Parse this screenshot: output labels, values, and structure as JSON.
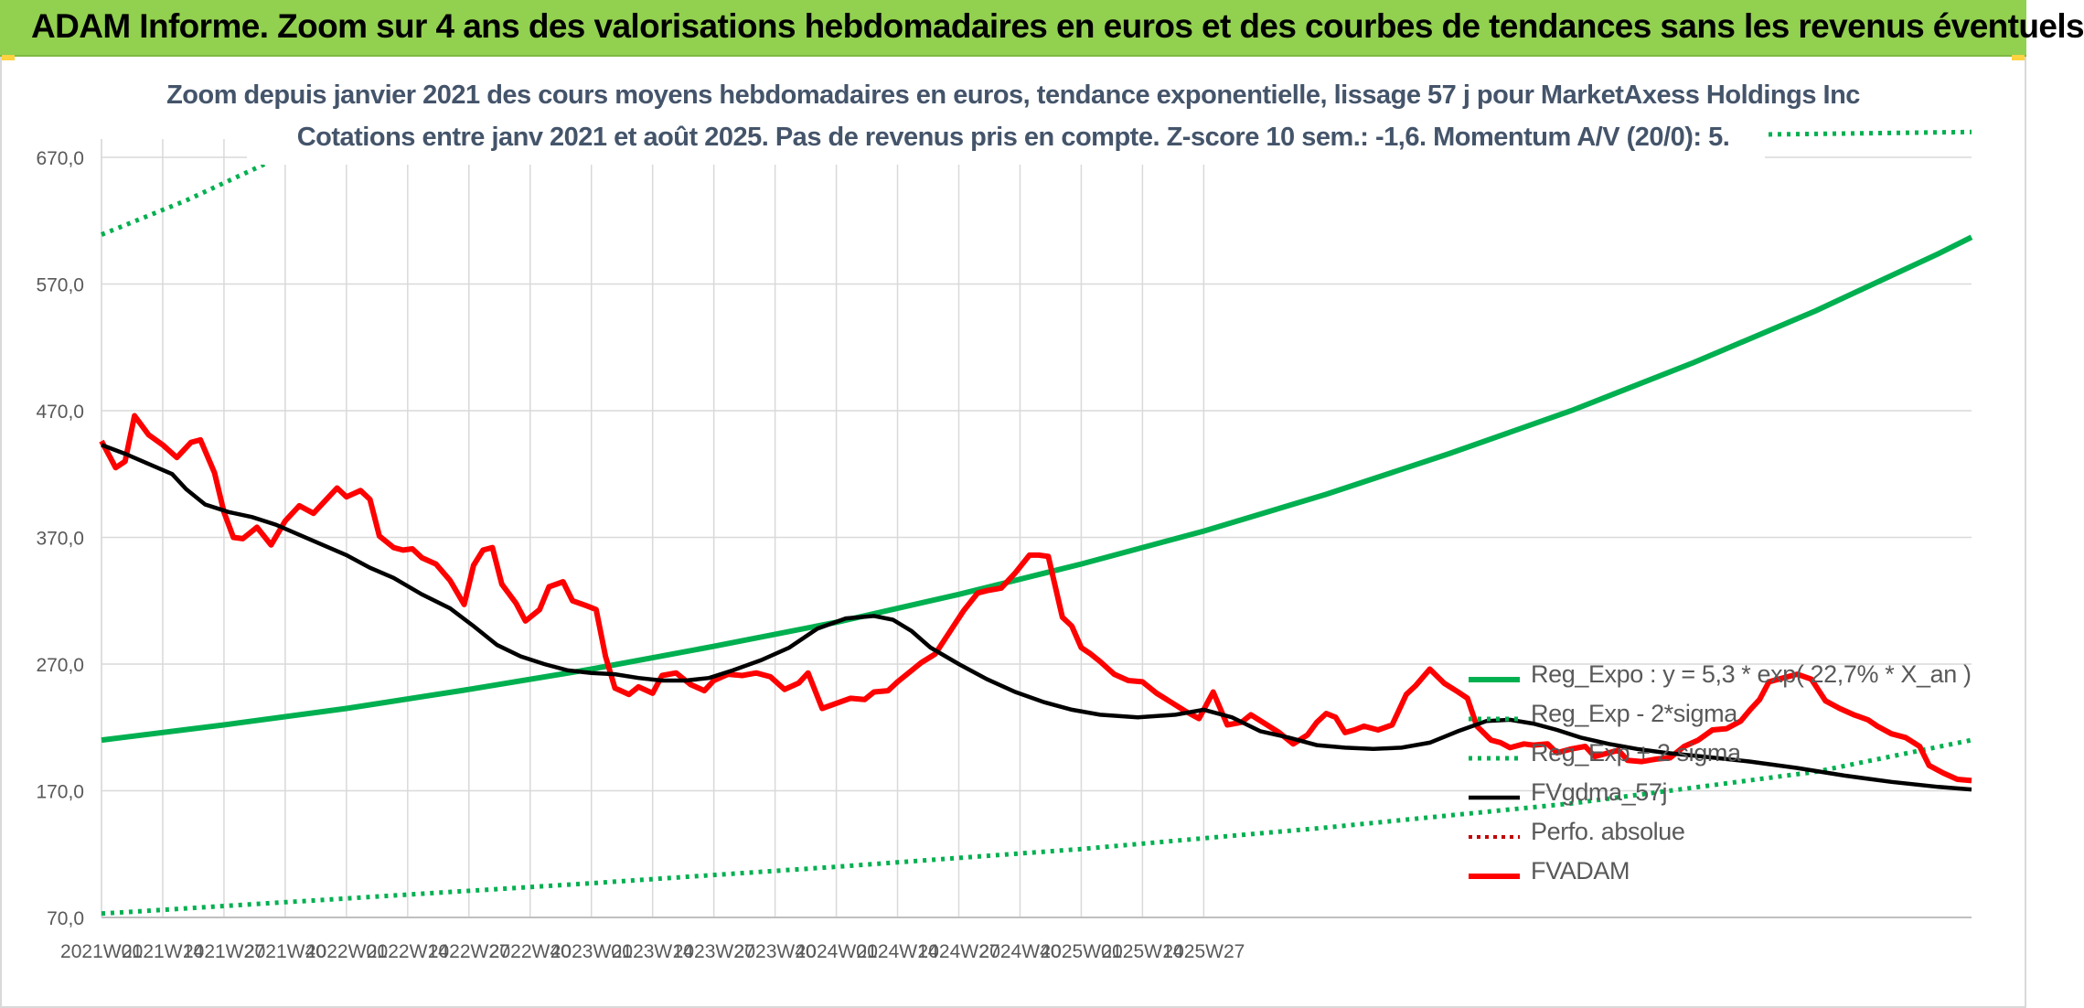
{
  "header": {
    "title": "ADAM Informe. Zoom sur 4 ans des valorisations hebdomadaires en euros et des courbes de tendances sans les revenus éventuels"
  },
  "chart_data": {
    "type": "line",
    "title": "Zoom depuis janvier 2021 des cours moyens hebdomadaires en euros, tendance exponentielle, lissage 57 j pour MarketAxess Holdings Inc",
    "subtitle": "Cotations entre janv 2021 et août 2025. Pas de revenus pris en compte. Z-score 10 sem.: -1,6. Momentum A/V (20/0): 5.",
    "xlabel": "",
    "ylabel": "",
    "ylim": [
      70,
      670
    ],
    "yticks": [
      "70,0",
      "170,0",
      "270,0",
      "370,0",
      "470,0",
      "570,0",
      "670,0"
    ],
    "xticks": [
      "2021W01",
      "2021W14",
      "2021W27",
      "2021W40",
      "2022W01",
      "2022W14",
      "2022W27",
      "2022W40",
      "2023W01",
      "2023W14",
      "2023W27",
      "2023W40",
      "2024W01",
      "2024W14",
      "2024W27",
      "2024W40",
      "2025W01",
      "2025W14",
      "2025W27"
    ],
    "grid": true,
    "legend_position": "bottom-right",
    "colors": {
      "reg_exp": "#00b050",
      "fvgdma": "#000000",
      "fvadam": "#ff0000",
      "perfo": "#c00000"
    },
    "series": [
      {
        "name": "Reg_Expo : y = 5,3 * exp( 22,7% * X_an )",
        "style": "solid-green",
        "points": [
          [
            0,
            210
          ],
          [
            26,
            222
          ],
          [
            52,
            235
          ],
          [
            78,
            250
          ],
          [
            104,
            266
          ],
          [
            130,
            284
          ],
          [
            156,
            303
          ],
          [
            182,
            325
          ],
          [
            208,
            349
          ],
          [
            234,
            375
          ],
          [
            260,
            404
          ],
          [
            286,
            436
          ],
          [
            312,
            470
          ],
          [
            338,
            508
          ],
          [
            364,
            549
          ],
          [
            390,
            594
          ],
          [
            397,
            607
          ]
        ]
      },
      {
        "name": "Reg_Exp - 2*sigma",
        "style": "dotted-green",
        "points": [
          [
            0,
            73
          ],
          [
            52,
            85
          ],
          [
            104,
            97
          ],
          [
            156,
            110
          ],
          [
            208,
            124
          ],
          [
            260,
            141
          ],
          [
            312,
            160
          ],
          [
            364,
            185
          ],
          [
            397,
            210
          ]
        ]
      },
      {
        "name": "Reg_Exp + 2 sigma",
        "style": "dotted-green",
        "points": [
          [
            0,
            609
          ],
          [
            18,
            636
          ],
          [
            36,
            667
          ],
          [
            352,
            688
          ],
          [
            397,
            690
          ]
        ]
      },
      {
        "name": "FVgdma_57j",
        "style": "solid-black",
        "points": [
          [
            0,
            443
          ],
          [
            5,
            436
          ],
          [
            10,
            428
          ],
          [
            15,
            420
          ],
          [
            18,
            408
          ],
          [
            22,
            396
          ],
          [
            27,
            390
          ],
          [
            32,
            386
          ],
          [
            37,
            380
          ],
          [
            42,
            372
          ],
          [
            47,
            364
          ],
          [
            52,
            356
          ],
          [
            57,
            346
          ],
          [
            62,
            338
          ],
          [
            68,
            325
          ],
          [
            74,
            314
          ],
          [
            79,
            300
          ],
          [
            84,
            285
          ],
          [
            89,
            276
          ],
          [
            94,
            270
          ],
          [
            99,
            265
          ],
          [
            104,
            263
          ],
          [
            109,
            262
          ],
          [
            114,
            259
          ],
          [
            119,
            257
          ],
          [
            124,
            257
          ],
          [
            129,
            259
          ],
          [
            134,
            265
          ],
          [
            140,
            273
          ],
          [
            146,
            283
          ],
          [
            152,
            298
          ],
          [
            158,
            306
          ],
          [
            164,
            308
          ],
          [
            168,
            305
          ],
          [
            172,
            296
          ],
          [
            176,
            283
          ],
          [
            182,
            270
          ],
          [
            188,
            258
          ],
          [
            194,
            248
          ],
          [
            200,
            240
          ],
          [
            206,
            234
          ],
          [
            212,
            230
          ],
          [
            220,
            228
          ],
          [
            228,
            230
          ],
          [
            234,
            234
          ],
          [
            240,
            228
          ],
          [
            246,
            217
          ],
          [
            252,
            212
          ],
          [
            258,
            206
          ],
          [
            264,
            204
          ],
          [
            270,
            203
          ],
          [
            276,
            204
          ],
          [
            282,
            208
          ],
          [
            288,
            217
          ],
          [
            294,
            225
          ],
          [
            299,
            226
          ],
          [
            304,
            223
          ],
          [
            309,
            218
          ],
          [
            314,
            212
          ],
          [
            320,
            207
          ],
          [
            326,
            203
          ],
          [
            332,
            200
          ],
          [
            340,
            197
          ],
          [
            350,
            193
          ],
          [
            360,
            188
          ],
          [
            370,
            182
          ],
          [
            380,
            177
          ],
          [
            390,
            173
          ],
          [
            397,
            171
          ]
        ]
      },
      {
        "name": "Perfo. absolue",
        "style": "dotted-red",
        "points": []
      },
      {
        "name": "FVADAM",
        "style": "solid-red",
        "points": [
          [
            0,
            446
          ],
          [
            3,
            425
          ],
          [
            5,
            430
          ],
          [
            7,
            466
          ],
          [
            10,
            451
          ],
          [
            13,
            443
          ],
          [
            16,
            433
          ],
          [
            19,
            445
          ],
          [
            21,
            447
          ],
          [
            24,
            421
          ],
          [
            26,
            390
          ],
          [
            28,
            370
          ],
          [
            30,
            369
          ],
          [
            33,
            378
          ],
          [
            36,
            364
          ],
          [
            39,
            383
          ],
          [
            42,
            395
          ],
          [
            45,
            389
          ],
          [
            48,
            401
          ],
          [
            50,
            409
          ],
          [
            52,
            402
          ],
          [
            55,
            407
          ],
          [
            57,
            400
          ],
          [
            59,
            371
          ],
          [
            62,
            362
          ],
          [
            64,
            360
          ],
          [
            66,
            361
          ],
          [
            68,
            354
          ],
          [
            71,
            349
          ],
          [
            74,
            336
          ],
          [
            77,
            317
          ],
          [
            79,
            348
          ],
          [
            81,
            360
          ],
          [
            83,
            362
          ],
          [
            85,
            333
          ],
          [
            88,
            318
          ],
          [
            90,
            304
          ],
          [
            93,
            313
          ],
          [
            95,
            331
          ],
          [
            98,
            335
          ],
          [
            100,
            320
          ],
          [
            103,
            316
          ],
          [
            105,
            313
          ],
          [
            107,
            276
          ],
          [
            109,
            251
          ],
          [
            112,
            246
          ],
          [
            114,
            252
          ],
          [
            117,
            247
          ],
          [
            119,
            261
          ],
          [
            122,
            263
          ],
          [
            125,
            254
          ],
          [
            128,
            249
          ],
          [
            130,
            257
          ],
          [
            133,
            262
          ],
          [
            136,
            261
          ],
          [
            139,
            263
          ],
          [
            142,
            260
          ],
          [
            145,
            250
          ],
          [
            148,
            255
          ],
          [
            150,
            263
          ],
          [
            153,
            235
          ],
          [
            156,
            239
          ],
          [
            159,
            243
          ],
          [
            162,
            242
          ],
          [
            164,
            248
          ],
          [
            167,
            249
          ],
          [
            169,
            256
          ],
          [
            172,
            265
          ],
          [
            174,
            271
          ],
          [
            177,
            278
          ],
          [
            180,
            295
          ],
          [
            183,
            312
          ],
          [
            186,
            326
          ],
          [
            188,
            328
          ],
          [
            191,
            330
          ],
          [
            194,
            342
          ],
          [
            197,
            356
          ],
          [
            199,
            356
          ],
          [
            201,
            355
          ],
          [
            204,
            307
          ],
          [
            206,
            300
          ],
          [
            208,
            283
          ],
          [
            210,
            278
          ],
          [
            212,
            272
          ],
          [
            215,
            262
          ],
          [
            218,
            257
          ],
          [
            221,
            256
          ],
          [
            224,
            247
          ],
          [
            227,
            240
          ],
          [
            230,
            233
          ],
          [
            233,
            227
          ],
          [
            236,
            248
          ],
          [
            239,
            222
          ],
          [
            242,
            224
          ],
          [
            244,
            230
          ],
          [
            247,
            223
          ],
          [
            250,
            216
          ],
          [
            253,
            207
          ],
          [
            256,
            214
          ],
          [
            258,
            224
          ],
          [
            260,
            231
          ],
          [
            262,
            228
          ],
          [
            264,
            216
          ],
          [
            266,
            218
          ],
          [
            268,
            221
          ],
          [
            271,
            218
          ],
          [
            274,
            222
          ],
          [
            277,
            246
          ],
          [
            279,
            253
          ],
          [
            282,
            266
          ],
          [
            285,
            255
          ],
          [
            288,
            248
          ],
          [
            290,
            243
          ],
          [
            292,
            221
          ],
          [
            295,
            210
          ],
          [
            297,
            208
          ],
          [
            299,
            204
          ],
          [
            302,
            207
          ],
          [
            304,
            206
          ],
          [
            307,
            207
          ],
          [
            309,
            200
          ],
          [
            312,
            203
          ],
          [
            315,
            205
          ],
          [
            317,
            197
          ],
          [
            320,
            200
          ],
          [
            322,
            202
          ],
          [
            324,
            194
          ],
          [
            327,
            193
          ],
          [
            330,
            195
          ],
          [
            333,
            196
          ],
          [
            336,
            205
          ],
          [
            339,
            210
          ],
          [
            342,
            218
          ],
          [
            345,
            219
          ],
          [
            348,
            225
          ],
          [
            350,
            234
          ],
          [
            352,
            242
          ],
          [
            354,
            256
          ],
          [
            357,
            259
          ],
          [
            360,
            262
          ],
          [
            363,
            258
          ],
          [
            366,
            241
          ],
          [
            369,
            235
          ],
          [
            372,
            230
          ],
          [
            375,
            226
          ],
          [
            377,
            221
          ],
          [
            380,
            215
          ],
          [
            383,
            212
          ],
          [
            386,
            205
          ],
          [
            388,
            190
          ],
          [
            391,
            184
          ],
          [
            394,
            179
          ],
          [
            397,
            178
          ]
        ]
      }
    ]
  }
}
